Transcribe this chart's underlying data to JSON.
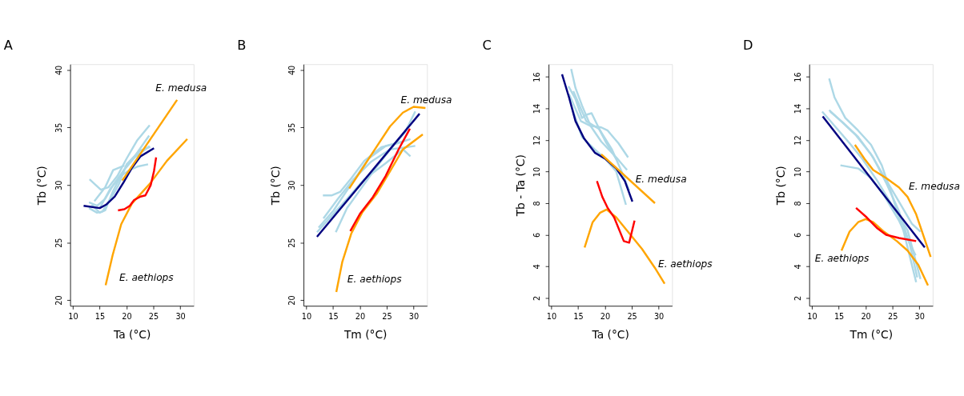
{
  "chart_data": [
    {
      "type": "line",
      "title": "A",
      "xlabel": "Ta (°C)",
      "ylabel": "Tb (°C)",
      "xlim": [
        9.5,
        32.5
      ],
      "ylim": [
        19.5,
        40.5
      ],
      "xticks": [
        10,
        15,
        20,
        25,
        30
      ],
      "yticks": [
        20,
        25,
        30,
        35,
        40
      ],
      "series": [
        {
          "color": "#add8e6",
          "x": [
            13.1,
            15.2,
            16.6,
            18.3,
            20.0,
            22.0,
            24.3
          ],
          "values": [
            30.5,
            29.6,
            29.8,
            30.8,
            32.3,
            33.9,
            35.2
          ]
        },
        {
          "color": "#add8e6",
          "x": [
            13.0,
            14.5,
            16.0,
            17.5,
            19.5,
            21.5,
            24.2
          ],
          "values": [
            28.5,
            28.2,
            28.8,
            30.0,
            31.3,
            32.5,
            34.3
          ]
        },
        {
          "color": "#add8e6",
          "x": [
            13.5,
            15.0,
            16.0,
            17.5,
            19.5,
            21.5,
            24.3
          ],
          "values": [
            28.3,
            27.6,
            27.8,
            29.5,
            31.3,
            32.4,
            33.4
          ]
        },
        {
          "color": "#add8e6",
          "x": [
            14.0,
            16.0,
            17.5,
            19.6
          ],
          "values": [
            28.6,
            29.8,
            31.3,
            31.7
          ]
        },
        {
          "color": "#add8e6",
          "x": [
            15.0,
            17.0,
            19.0,
            20.5,
            22.0,
            24.0
          ],
          "values": [
            28.0,
            29.7,
            30.8,
            31.3,
            31.6,
            31.8
          ]
        },
        {
          "color": "#add8e6",
          "x": [
            13.0,
            14.5,
            15.5,
            17.0,
            18.5,
            20.0,
            22.5,
            24.4
          ],
          "values": [
            28.0,
            27.6,
            27.7,
            28.8,
            30.0,
            31.8,
            33.0,
            33.3
          ]
        },
        {
          "color": "#000080",
          "x": [
            12.0,
            15.0,
            16.2,
            17.8,
            19.4,
            21.0,
            22.6,
            25.1
          ],
          "values": [
            28.2,
            28.0,
            28.3,
            29.0,
            30.2,
            31.5,
            32.5,
            33.2
          ]
        },
        {
          "color": "#ffa500",
          "x": [
            19.2,
            29.4
          ],
          "values": [
            30.4,
            37.4
          ]
        },
        {
          "color": "#ffa500",
          "x": [
            16.1,
            17.4,
            19.0,
            21.0,
            24.3,
            27.5,
            31.3
          ],
          "values": [
            21.3,
            23.9,
            26.6,
            28.4,
            30.1,
            32.1,
            34.0
          ]
        },
        {
          "color": "#ff0000",
          "x": [
            18.4,
            19.6,
            20.6,
            21.4,
            22.6,
            23.5,
            24.5,
            25.1,
            25.5
          ],
          "values": [
            27.8,
            27.9,
            28.2,
            28.7,
            29.0,
            29.1,
            30.0,
            31.2,
            32.4
          ]
        }
      ],
      "annotations": [
        {
          "text": "E. medusa",
          "x": 29.4,
          "y": 37.4
        },
        {
          "text": "E. aethiops",
          "x": 16.1,
          "y": 21.3
        }
      ]
    },
    {
      "type": "line",
      "title": "B",
      "xlabel": "Tm (°C)",
      "ylabel": "Tb (°C)",
      "xlim": [
        9.5,
        32.5
      ],
      "ylim": [
        19.5,
        40.5
      ],
      "xticks": [
        10,
        15,
        20,
        25,
        30
      ],
      "yticks": [
        20,
        25,
        30,
        35,
        40
      ],
      "series": [
        {
          "color": "#add8e6",
          "x": [
            13.1,
            14.7,
            16.3,
            18.4,
            20.8,
            24.0,
            26.8,
            29.4
          ],
          "values": [
            29.1,
            29.1,
            29.4,
            30.6,
            32.1,
            33.3,
            33.6,
            34.0
          ]
        },
        {
          "color": "#add8e6",
          "x": [
            13.2,
            15.9,
            18.8,
            22.0,
            25.6,
            28.8,
            30.3
          ],
          "values": [
            27.1,
            28.8,
            30.5,
            32.0,
            33.1,
            33.3,
            33.4
          ]
        },
        {
          "color": "#add8e6",
          "x": [
            12.0,
            14.7,
            17.6,
            20.8,
            24.8,
            28.0,
            29.4
          ],
          "values": [
            25.9,
            27.3,
            28.8,
            30.5,
            31.9,
            33.1,
            32.5
          ]
        },
        {
          "color": "#add8e6",
          "x": [
            15.5,
            17.6,
            19.6,
            22.8,
            26.0,
            28.4,
            30.3
          ],
          "values": [
            25.9,
            28.0,
            29.3,
            31.4,
            33.3,
            34.6,
            36.4
          ]
        },
        {
          "color": "#add8e6",
          "x": [
            12.3,
            15.1,
            18.4,
            21.6,
            24.8,
            28.0
          ],
          "values": [
            26.3,
            27.8,
            30.1,
            32.3,
            33.4,
            33.8
          ]
        },
        {
          "color": "#000080",
          "x": [
            12.0,
            31.1
          ],
          "values": [
            25.5,
            36.2
          ]
        },
        {
          "color": "#ffa500",
          "x": [
            18.0,
            20.4,
            23.2,
            25.6,
            28.0,
            30.0,
            32.2
          ],
          "values": [
            29.7,
            31.4,
            33.4,
            35.1,
            36.3,
            36.8,
            36.7
          ]
        },
        {
          "color": "#ffa500",
          "x": [
            15.6,
            16.7,
            18.4,
            20.4,
            23.2,
            25.6,
            28.0,
            31.7
          ],
          "values": [
            20.7,
            23.3,
            25.8,
            27.6,
            29.3,
            31.2,
            33.1,
            34.4
          ]
        },
        {
          "color": "#ff0000",
          "x": [
            18.2,
            20.0,
            22.4,
            24.8,
            27.2,
            29.3
          ],
          "values": [
            26.0,
            27.5,
            28.95,
            30.8,
            33.1,
            34.9
          ]
        }
      ],
      "annotations": [
        {
          "text": "E. medusa",
          "x": 32.2,
          "y": 36.7
        },
        {
          "text": "E. aethiops",
          "x": 15.6,
          "y": 20.7
        }
      ]
    },
    {
      "type": "line",
      "title": "C",
      "xlabel": "Ta (°C)",
      "ylabel": "Tb - Ta (°C)",
      "xlim": [
        9.5,
        32.5
      ],
      "ylim": [
        1.5,
        16.8
      ],
      "xticks": [
        10,
        15,
        20,
        25,
        30
      ],
      "yticks": [
        2,
        4,
        6,
        8,
        10,
        12,
        14,
        16
      ],
      "series": [
        {
          "color": "#add8e6",
          "x": [
            13.7,
            14.5,
            15.7,
            17.3,
            19.3,
            22.1,
            24.1
          ],
          "values": [
            16.5,
            15.3,
            14.2,
            12.9,
            11.9,
            10.9,
            10.1
          ]
        },
        {
          "color": "#add8e6",
          "x": [
            13.2,
            14.5,
            15.7,
            16.5,
            17.5,
            18.5,
            20.1,
            22.1
          ],
          "values": [
            15.4,
            14.6,
            13.4,
            13.6,
            13.7,
            13.0,
            11.9,
            10.8
          ]
        },
        {
          "color": "#add8e6",
          "x": [
            13.3,
            15.5,
            17.3,
            19.3,
            20.5,
            22.5,
            24.3
          ],
          "values": [
            14.9,
            13.2,
            12.9,
            12.8,
            12.6,
            11.8,
            10.9
          ]
        },
        {
          "color": "#add8e6",
          "x": [
            13.7,
            15.7,
            18.1,
            20.1,
            22.1,
            23.9
          ],
          "values": [
            14.2,
            12.2,
            11.4,
            10.8,
            10.0,
            7.9
          ]
        },
        {
          "color": "#add8e6",
          "x": [
            14.1,
            16.5,
            18.9,
            19.7
          ],
          "values": [
            15.1,
            13.2,
            12.7,
            12.2
          ]
        },
        {
          "color": "#add8e6",
          "x": [
            18.9,
            21.3,
            23.1,
            24.5
          ],
          "values": [
            12.7,
            11.4,
            10.0,
            8.8
          ]
        },
        {
          "color": "#000080",
          "x": [
            12.0,
            13.3,
            14.5,
            16.1,
            18.1,
            20.1,
            22.1,
            23.7,
            25.1
          ],
          "values": [
            16.16,
            14.7,
            13.2,
            12.1,
            11.2,
            10.8,
            10.2,
            9.4,
            8.1
          ]
        },
        {
          "color": "#ffa500",
          "x": [
            19.3,
            29.3
          ],
          "values": [
            11.1,
            8.0
          ]
        },
        {
          "color": "#ffa500",
          "x": [
            16.2,
            17.7,
            19.1,
            20.3,
            22.1,
            24.5,
            26.9,
            29.3,
            31.1
          ],
          "values": [
            5.2,
            6.8,
            7.4,
            7.6,
            7.1,
            6.1,
            5.1,
            3.9,
            2.9
          ]
        },
        {
          "color": "#ff0000",
          "x": [
            18.5,
            19.5,
            20.5,
            21.7,
            23.5,
            24.5,
            25.5
          ],
          "values": [
            9.4,
            8.4,
            7.7,
            7.1,
            5.6,
            5.5,
            6.9
          ]
        }
      ],
      "annotations": [
        {
          "text": "E. medusa",
          "x": 29.3,
          "y": 8.0
        },
        {
          "text": "E. aethiops",
          "x": 31.1,
          "y": 2.9
        }
      ]
    },
    {
      "type": "line",
      "title": "D",
      "xlabel": "Tm (°C)",
      "ylabel": "Tb (°C)",
      "xlim": [
        9.5,
        32.5
      ],
      "ylim": [
        1.5,
        16.8
      ],
      "xticks": [
        10,
        15,
        20,
        25,
        30
      ],
      "yticks": [
        2,
        4,
        6,
        8,
        10,
        12,
        14,
        16
      ],
      "series": [
        {
          "color": "#add8e6",
          "x": [
            13.2,
            14.2,
            16.2,
            18.6,
            21.0,
            23.0,
            25.0,
            27.0,
            29.4
          ],
          "values": [
            15.9,
            14.7,
            13.4,
            12.6,
            11.7,
            10.4,
            8.4,
            6.3,
            3.0
          ]
        },
        {
          "color": "#add8e6",
          "x": [
            11.9,
            14.2,
            17.0,
            19.4,
            22.2,
            25.4,
            27.8,
            30.2
          ],
          "values": [
            13.8,
            12.9,
            11.8,
            10.8,
            9.4,
            7.6,
            6.3,
            3.2
          ]
        },
        {
          "color": "#add8e6",
          "x": [
            13.2,
            15.4,
            18.2,
            21.0,
            23.4,
            26.2,
            28.6,
            30.2
          ],
          "values": [
            13.9,
            13.2,
            12.3,
            11.1,
            9.7,
            8.1,
            6.7,
            6.2
          ]
        },
        {
          "color": "#add8e6",
          "x": [
            15.3,
            18.6,
            21.0,
            23.4,
            26.2,
            29.3
          ],
          "values": [
            10.4,
            10.2,
            9.6,
            8.5,
            6.9,
            4.7
          ]
        },
        {
          "color": "#add8e6",
          "x": [
            13.4,
            15.8,
            18.6,
            21.4,
            23.8,
            26.2,
            28.2,
            29.6
          ],
          "values": [
            13.8,
            13.1,
            12.2,
            10.9,
            9.3,
            7.5,
            5.4,
            3.3
          ]
        },
        {
          "color": "#000080",
          "x": [
            12.0,
            31.0
          ],
          "values": [
            13.5,
            5.2
          ]
        },
        {
          "color": "#ffa500",
          "x": [
            18.0,
            19.8,
            21.4,
            23.8,
            26.2,
            27.8,
            29.4,
            32.1
          ],
          "values": [
            11.7,
            10.8,
            10.1,
            9.6,
            9.0,
            8.4,
            7.3,
            4.6
          ]
        },
        {
          "color": "#ffa500",
          "x": [
            15.5,
            17.0,
            18.6,
            20.0,
            21.4,
            23.4,
            25.8,
            27.8,
            29.8,
            31.6
          ],
          "values": [
            5.0,
            6.2,
            6.8,
            7.0,
            6.8,
            6.2,
            5.6,
            5.0,
            4.1,
            2.8
          ]
        },
        {
          "color": "#ff0000",
          "x": [
            18.2,
            20.2,
            22.2,
            23.8,
            26.2,
            29.4
          ],
          "values": [
            7.7,
            7.1,
            6.4,
            6.0,
            5.8,
            5.6
          ]
        }
      ],
      "annotations": [
        {
          "text": "E. medusa",
          "x": 26.2,
          "y": 9.0
        },
        {
          "text": "E. aethiops",
          "x": 15.5,
          "y": 5.0
        }
      ]
    }
  ]
}
